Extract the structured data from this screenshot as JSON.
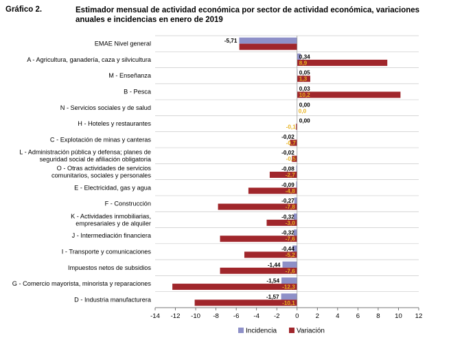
{
  "header": {
    "figure_label": "Gráfico 2.",
    "title": "Estimador mensual de actividad económica por sector de actividad económica, variaciones anuales e incidencias en enero de 2019"
  },
  "colors": {
    "incidencia": "#8e90c8",
    "variacion": "#a0262b",
    "variacion_label_yellow": "#e8b321",
    "grid": "#c8c8c8"
  },
  "chart_data": {
    "type": "bar",
    "orientation": "horizontal",
    "categories": [
      [
        "EMAE Nivel general"
      ],
      [
        "A - Agricultura, ganadería, caza y silvicultura"
      ],
      [
        "M - Enseñanza"
      ],
      [
        "B - Pesca"
      ],
      [
        "N - Servicios sociales y de salud"
      ],
      [
        "H - Hoteles y restaurantes"
      ],
      [
        "C - Explotación de minas y canteras"
      ],
      [
        "L - Administración pública y defensa; planes de",
        "seguridad social de afiliación obligatoria"
      ],
      [
        "O - Otras actividades de servicios",
        "comunitarios, sociales y personales"
      ],
      [
        "E - Electricidad, gas y agua"
      ],
      [
        "F - Construcción"
      ],
      [
        "K - Actividades inmobiliarias,",
        "empresariales y de alquiler"
      ],
      [
        "J - Intermediación financiera"
      ],
      [
        "I - Transporte y comunicaciones"
      ],
      [
        "Impuestos netos de subsidios"
      ],
      [
        "G - Comercio mayorista, minorista y reparaciones"
      ],
      [
        "D - Industria manufacturera"
      ]
    ],
    "series": [
      {
        "name": "Incidencia",
        "values": [
          -5.71,
          0.34,
          0.05,
          0.03,
          0.0,
          0.0,
          -0.02,
          -0.02,
          -0.08,
          -0.09,
          -0.27,
          -0.32,
          -0.32,
          -0.44,
          -1.44,
          -1.54,
          -1.57
        ],
        "labels": [
          "-5,71",
          "0,34",
          "0,05",
          "0,03",
          "0,00",
          "0,00",
          "-0,02",
          "-0,02",
          "-0,08",
          "-0,09",
          "-0,27",
          "-0,32",
          "-0,32",
          "-0,44",
          "-1,44",
          "-1,54",
          "-1,57"
        ]
      },
      {
        "name": "Variación",
        "values": [
          -5.7,
          8.9,
          1.3,
          10.2,
          0.0,
          -0.1,
          -0.7,
          -0.5,
          -2.7,
          -4.8,
          -7.8,
          -3.0,
          -7.6,
          -5.2,
          -7.6,
          -12.3,
          -10.1
        ],
        "labels": [
          "",
          "8,9",
          "1,3",
          "10,2",
          "0,0",
          "-0,1",
          "-0,7",
          "-0,5",
          "-2,7",
          "-4,8",
          "-7,8",
          "-3,0",
          "-7,6",
          "-5,2",
          "-7,6",
          "-12,3",
          "-10,1"
        ]
      }
    ],
    "xlim": [
      -14,
      12
    ],
    "xticks": [
      -14,
      -12,
      -10,
      -8,
      -6,
      -4,
      -2,
      0,
      2,
      4,
      6,
      8,
      10,
      12
    ],
    "grid": "horizontal bands",
    "legend_position": "bottom-center"
  }
}
